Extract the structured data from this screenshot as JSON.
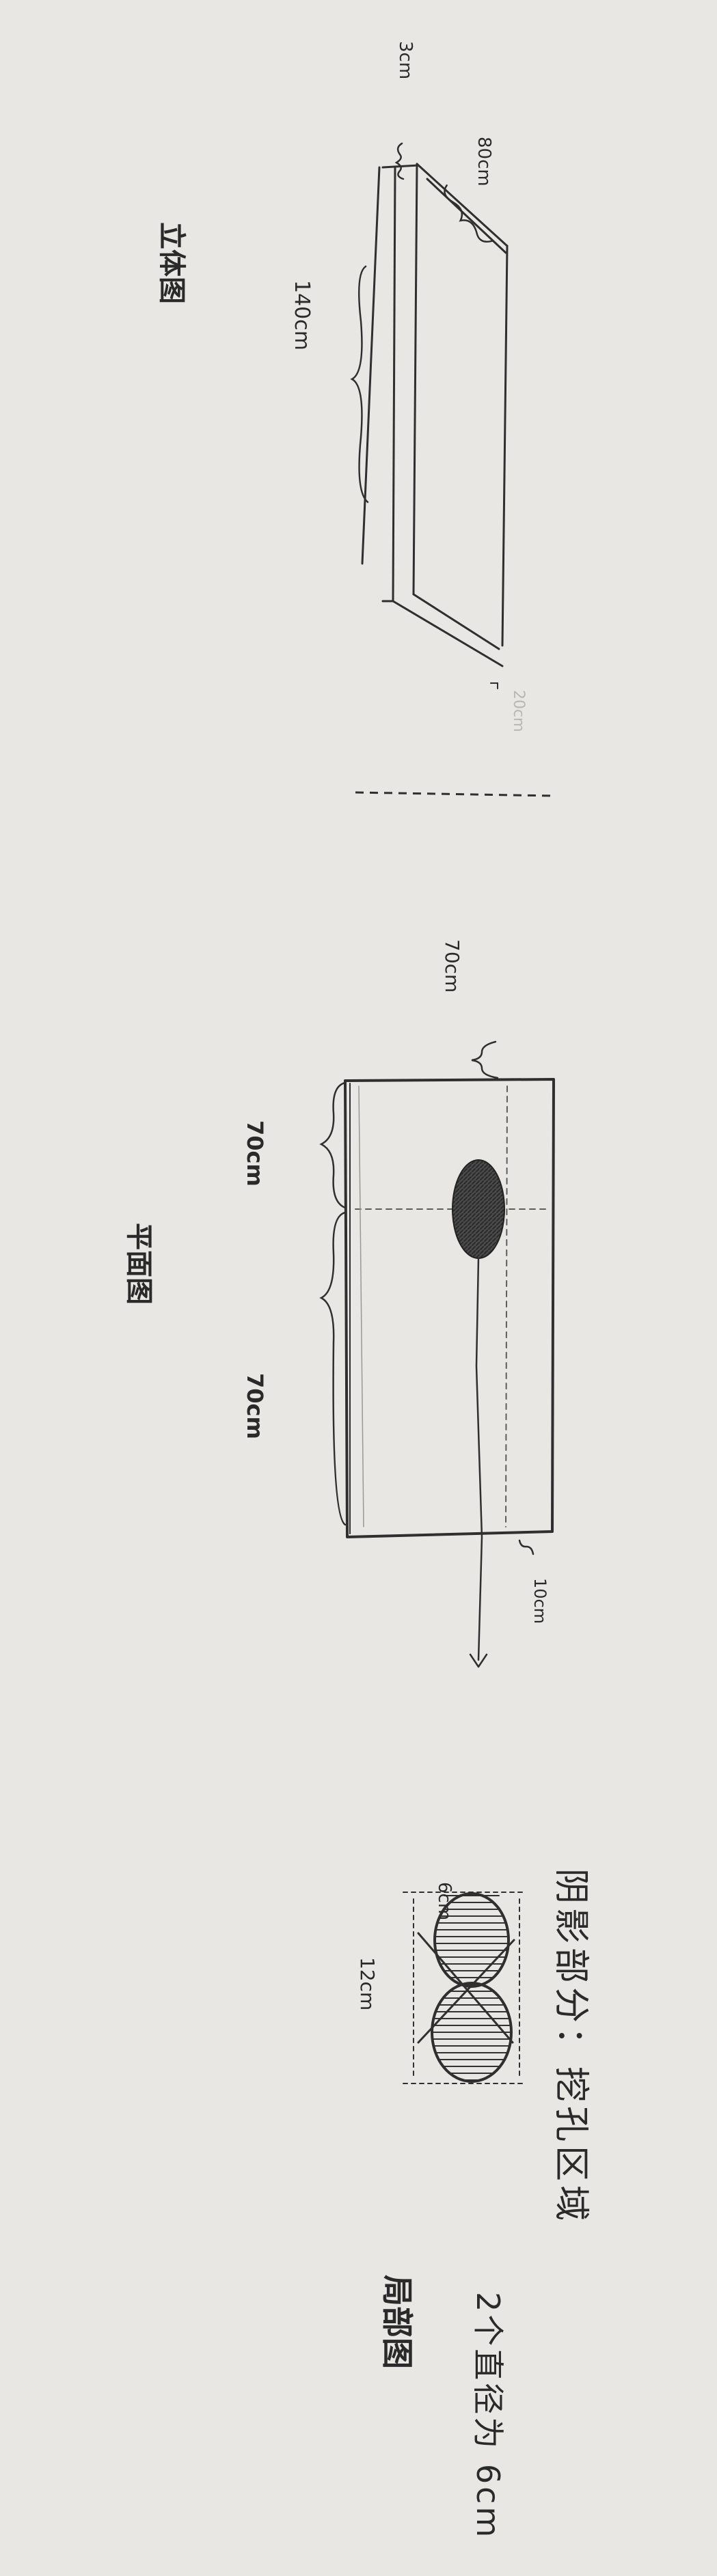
{
  "paper": {
    "background": "#e8e7e4",
    "ink": "#2a2a2a"
  },
  "view_3d": {
    "title": "立体图",
    "dim_width": "80cm",
    "dim_thickness": "3cm",
    "dim_length": "140cm",
    "dim_end": "20cm"
  },
  "view_plan": {
    "title": "平面图",
    "dim_top": "70cm",
    "dim_left_upper": "70cm",
    "dim_left_lower": "70cm",
    "dim_margin": "10cm"
  },
  "view_detail": {
    "dim_hole": "6cm",
    "dim_pitch": "12cm",
    "title": "局部图"
  },
  "note": {
    "line1": "阴影部分：挖孔区域",
    "line2": "2个直径为 6cm"
  }
}
